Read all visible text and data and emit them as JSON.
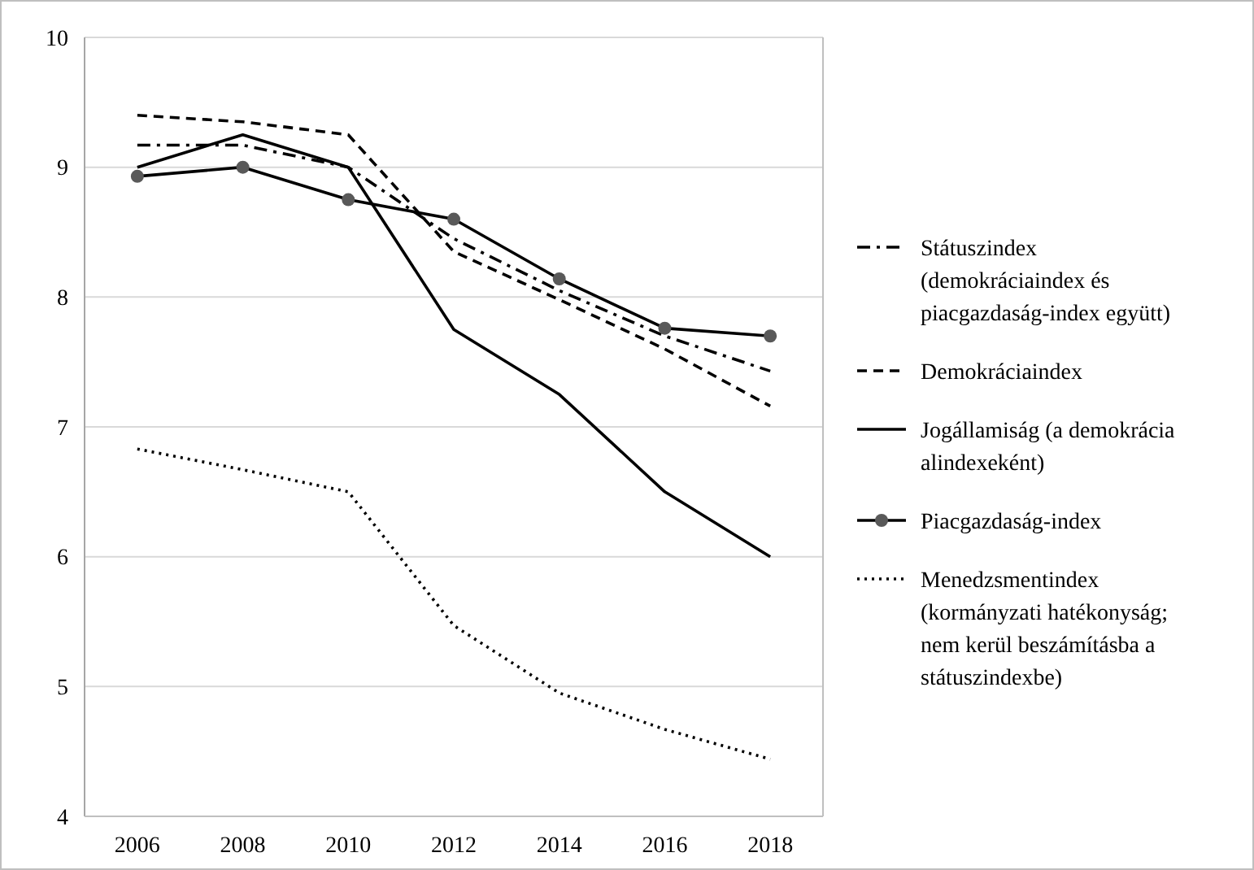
{
  "chart_data": {
    "type": "line",
    "categories": [
      "2006",
      "2008",
      "2010",
      "2012",
      "2014",
      "2016",
      "2018"
    ],
    "series": [
      {
        "name": "Státuszindex (demokráciaindex és piacgazdaság-index együtt)",
        "color": "#000000",
        "line_style": "dashdot",
        "marker": "none",
        "values": [
          9.17,
          9.17,
          9.0,
          8.45,
          8.05,
          7.7,
          7.43
        ]
      },
      {
        "name": "Demokráciaindex",
        "color": "#000000",
        "line_style": "dashed",
        "marker": "none",
        "values": [
          9.4,
          9.35,
          9.25,
          8.35,
          7.98,
          7.6,
          7.16
        ]
      },
      {
        "name": "Jogállamiság (a demokrácia alindexeként)",
        "color": "#000000",
        "line_style": "solid",
        "marker": "none",
        "values": [
          9.0,
          9.25,
          9.0,
          7.75,
          7.25,
          6.5,
          6.0
        ]
      },
      {
        "name": "Piacgazdaság-index",
        "color": "#000000",
        "line_style": "solid",
        "marker": "circle",
        "values": [
          8.93,
          9.0,
          8.75,
          8.6,
          8.14,
          7.76,
          7.7
        ]
      },
      {
        "name": "Menedzsmentindex (kormányzati hatékonyság; nem kerül beszámításba a státuszindexbe)",
        "color": "#000000",
        "line_style": "dotted",
        "marker": "none",
        "values": [
          6.83,
          6.67,
          6.5,
          5.47,
          4.95,
          4.67,
          4.44
        ]
      }
    ],
    "ylim": [
      4,
      10
    ],
    "yticks": [
      4,
      5,
      6,
      7,
      8,
      9,
      10
    ],
    "grid": "y",
    "legend": "right"
  }
}
